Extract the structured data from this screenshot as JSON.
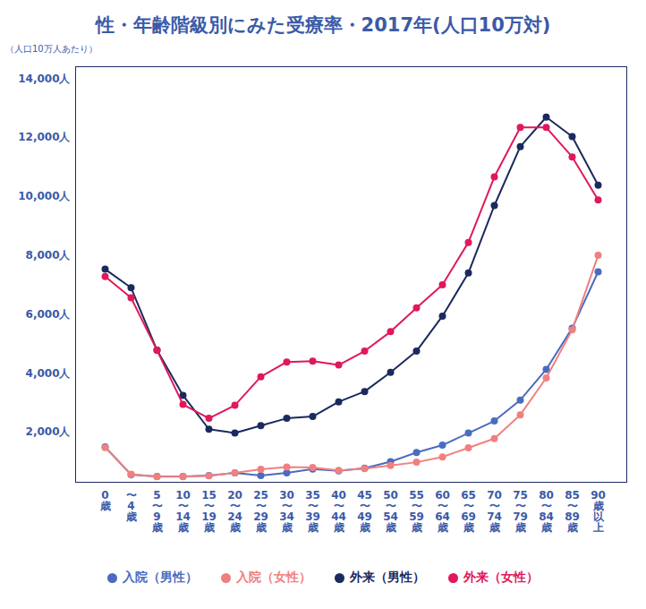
{
  "chart_data": {
    "type": "line",
    "title": "性・年齢階級別にみた受療率・2017年(人口10万対)",
    "subtitle": "（人口10万人あたり）",
    "categories": [
      "0歳",
      "〜4歳",
      "5〜9歳",
      "10〜14歳",
      "15〜19歳",
      "20〜24歳",
      "25〜29歳",
      "30〜34歳",
      "35〜39歳",
      "40〜44歳",
      "45〜49歳",
      "50〜54歳",
      "55〜59歳",
      "60〜64歳",
      "65〜69歳",
      "70〜74歳",
      "75〜79歳",
      "80〜84歳",
      "85〜89歳",
      "90歳以上"
    ],
    "series": [
      {
        "name": "入院（男性）",
        "color": "#4a6bbf",
        "marker": "circle",
        "line_style": "solid",
        "values": [
          1500,
          560,
          500,
          500,
          530,
          620,
          530,
          620,
          750,
          690,
          780,
          1000,
          1310,
          1560,
          1970,
          2380,
          3090,
          4130,
          5530,
          7440
        ]
      },
      {
        "name": "入院（女性）",
        "color": "#f08080",
        "marker": "circle",
        "line_style": "solid",
        "values": [
          1480,
          570,
          490,
          490,
          520,
          620,
          740,
          820,
          800,
          700,
          760,
          870,
          980,
          1160,
          1470,
          1780,
          2590,
          3840,
          5470,
          8000
        ]
      },
      {
        "name": "外来（男性）",
        "color": "#1b2a5e",
        "marker": "circle",
        "line_style": "solid",
        "values": [
          7530,
          6900,
          4780,
          3250,
          2100,
          1970,
          2220,
          2470,
          2530,
          3030,
          3380,
          4030,
          4750,
          5940,
          7400,
          9690,
          11690,
          12690,
          12030,
          10380
        ]
      },
      {
        "name": "外来（女性）",
        "color": "#e0185c",
        "marker": "circle",
        "line_style": "solid",
        "values": [
          7280,
          6560,
          4780,
          2940,
          2470,
          2910,
          3880,
          4380,
          4410,
          4280,
          4750,
          5410,
          6220,
          7000,
          8440,
          10660,
          12340,
          12340,
          11340,
          9880
        ]
      }
    ],
    "ylim": [
      300,
      14400
    ],
    "yticks": [
      {
        "value": 2000,
        "label": "2,000人"
      },
      {
        "value": 4000,
        "label": "4,000人"
      },
      {
        "value": 6000,
        "label": "6,000人"
      },
      {
        "value": 8000,
        "label": "8,000人"
      },
      {
        "value": 10000,
        "label": "10,000人"
      },
      {
        "value": 12000,
        "label": "12,000人"
      },
      {
        "value": 14000,
        "label": "14,000人"
      }
    ],
    "grid": false,
    "legend": "bottom"
  }
}
